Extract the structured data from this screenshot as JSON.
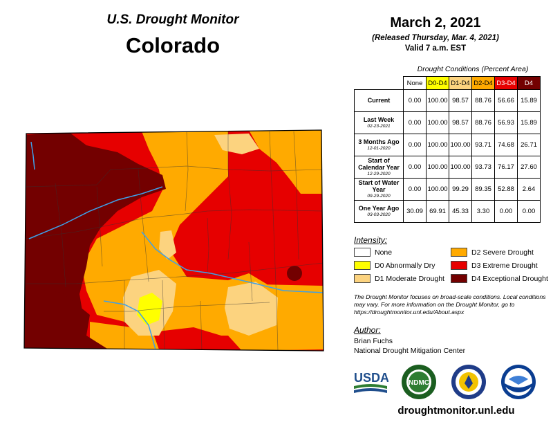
{
  "header": {
    "subtitle": "U.S. Drought Monitor",
    "state": "Colorado",
    "date": "March 2, 2021",
    "released": "(Released Thursday, Mar. 4, 2021)",
    "valid": "Valid 7 a.m. EST"
  },
  "table": {
    "caption": "Drought Conditions (Percent Area)",
    "columns": [
      "None",
      "D0-D4",
      "D1-D4",
      "D2-D4",
      "D3-D4",
      "D4"
    ],
    "column_colors": [
      "#ffffff",
      "#ffff00",
      "#fcd37f",
      "#ffaa00",
      "#e60000",
      "#730000"
    ],
    "rows": [
      {
        "label": "Current",
        "date": "",
        "values": [
          "0.00",
          "100.00",
          "98.57",
          "88.76",
          "56.66",
          "15.89"
        ]
      },
      {
        "label": "Last Week",
        "date": "02-23-2021",
        "values": [
          "0.00",
          "100.00",
          "98.57",
          "88.76",
          "56.93",
          "15.89"
        ]
      },
      {
        "label": "3 Months Ago",
        "date": "12-01-2020",
        "values": [
          "0.00",
          "100.00",
          "100.00",
          "93.71",
          "74.68",
          "26.71"
        ]
      },
      {
        "label": "Start of Calendar Year",
        "date": "12-29-2020",
        "values": [
          "0.00",
          "100.00",
          "100.00",
          "93.73",
          "76.17",
          "27.60"
        ]
      },
      {
        "label": "Start of Water Year",
        "date": "09-29-2020",
        "values": [
          "0.00",
          "100.00",
          "99.29",
          "89.35",
          "52.88",
          "2.64"
        ]
      },
      {
        "label": "One Year Ago",
        "date": "03-03-2020",
        "values": [
          "30.09",
          "69.91",
          "45.33",
          "3.30",
          "0.00",
          "0.00"
        ]
      }
    ]
  },
  "legend": {
    "title": "Intensity:",
    "items": [
      {
        "label": "None",
        "color": "#ffffff"
      },
      {
        "label": "D0 Abnormally Dry",
        "color": "#ffff00"
      },
      {
        "label": "D1 Moderate Drought",
        "color": "#fcd37f"
      },
      {
        "label": "D2 Severe Drought",
        "color": "#ffaa00"
      },
      {
        "label": "D3 Extreme Drought",
        "color": "#e60000"
      },
      {
        "label": "D4 Exceptional Drought",
        "color": "#730000"
      }
    ]
  },
  "disclaimer": "The Drought Monitor focuses on broad-scale conditions. Local conditions may vary. For more information on the Drought Monitor, go to https://droughtmonitor.unl.edu/About.aspx",
  "author": {
    "title": "Author:",
    "name": "Brian Fuchs",
    "org": "National Drought Mitigation Center"
  },
  "logos": {
    "usda": "USDA",
    "ndmc": "NDMC",
    "noaa": "NOAA"
  },
  "footer_url": "droughtmonitor.unl.edu"
}
